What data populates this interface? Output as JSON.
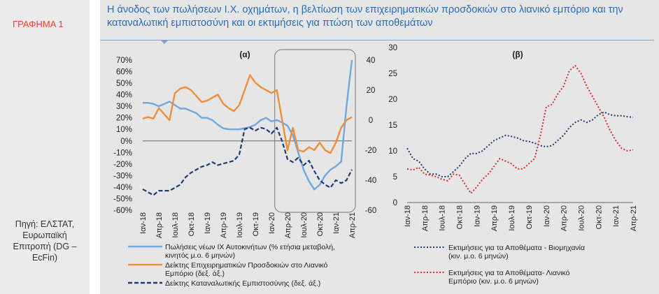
{
  "figure_label": "ΓΡΑΦΗΜΑ 1",
  "title": "Η άνοδος των πωλήσεων Ι.Χ. οχημάτων, η βελτίωση των επιχειρηματικών προσδοκιών στο λιανικό εμπόριο και την καταναλωτική εμπιστοσύνη και οι εκτιμήσεις για πτώση των αποθεμάτων",
  "source": [
    "Πηγή: ΕΛΣΤΑΤ,",
    "Ευρωπαϊκή",
    "Επιτροπή (DG –",
    "EcFin)"
  ],
  "colors": {
    "accent": "#2a6db5",
    "label_red": "#e8432f",
    "panel_bg": "#e6e6e6",
    "side_bg": "#ebebeb"
  },
  "chart_data": [
    {
      "type": "line",
      "panel_label": "(α)",
      "x": [
        "Ιαν-18",
        "Φεβ-18",
        "Μαρ-18",
        "Απρ-18",
        "Μαϊ-18",
        "Ιουν-18",
        "Ιουλ-18",
        "Αυγ-18",
        "Σεπ-18",
        "Οκτ-18",
        "Νοε-18",
        "Δεκ-18",
        "Ιαν-19",
        "Φεβ-19",
        "Μαρ-19",
        "Απρ-19",
        "Μαϊ-19",
        "Ιουν-19",
        "Ιουλ-19",
        "Αυγ-19",
        "Σεπ-19",
        "Οκτ-19",
        "Νοε-19",
        "Δεκ-19",
        "Ιαν-20",
        "Φεβ-20",
        "Μαρ-20",
        "Απρ-20",
        "Μαϊ-20",
        "Ιουν-20",
        "Ιουλ-20",
        "Αυγ-20",
        "Σεπ-20",
        "Οκτ-20",
        "Νοε-20",
        "Δεκ-20",
        "Ιαν-21",
        "Φεβ-21",
        "Μαρ-21",
        "Απρ-21"
      ],
      "x_tick_labels": [
        "Ιαν-18",
        "Απρ-18",
        "Ιουλ-18",
        "Οκτ-18",
        "Ιαν-19",
        "Απρ-19",
        "Ιουλ-19",
        "Οκτ-19",
        "Ιαν-20",
        "Απρ-20",
        "Ιουλ-20",
        "Οκτ-20",
        "Ιαν-21",
        "Απρ-21"
      ],
      "y_left_ticks": [
        "70%",
        "60%",
        "50%",
        "40%",
        "30%",
        "20%",
        "10%",
        "0%",
        "-10%",
        "-20%",
        "-30%",
        "-40%",
        "-50%",
        "-60%"
      ],
      "y_left_range": [
        -60,
        70
      ],
      "y_right_ticks": [
        "40",
        "20",
        "0",
        "-20",
        "-40",
        "-60"
      ],
      "y_right_range": [
        -60,
        40
      ],
      "highlight_box": {
        "from": "Φεβ-20",
        "to": "Απρ-21"
      },
      "series": [
        {
          "name": "Πωλήσεις νέων ΙΧ Αυτοκινήτων (% ετήσια μεταβολή, κινητός μ.ο. 6 μηνών)",
          "axis": "left",
          "color": "#6fa8dc",
          "style": "solid",
          "values": [
            33,
            33,
            32,
            30,
            32,
            34,
            31,
            28,
            28,
            26,
            24,
            20,
            20,
            18,
            14,
            11,
            10,
            10,
            10,
            11,
            12,
            14,
            18,
            20,
            17,
            18,
            16,
            13,
            5,
            -10,
            -25,
            -35,
            -42,
            -38,
            -30,
            -25,
            -22,
            -18,
            30,
            70
          ]
        },
        {
          "name": "Δείκτης Επιχειρηματικών Προσδοκιών στο Λιανικό Εμπόριο (δεξ. άξ.)",
          "axis": "right",
          "color": "#ed8e3c",
          "style": "solid",
          "values": [
            1,
            2,
            1,
            8,
            4,
            0,
            18,
            21,
            22,
            20,
            16,
            12,
            13,
            15,
            17,
            11,
            8,
            6,
            10,
            20,
            30,
            25,
            22,
            20,
            18,
            20,
            0,
            -20,
            -5,
            -20,
            -21,
            -18,
            -20,
            -15,
            -20,
            -22,
            -15,
            -5,
            0,
            2
          ]
        },
        {
          "name": "Δείκτης Καταναλωτικής Εμπιστοσύνης (δεξ. άξ.)",
          "axis": "right",
          "color": "#1f3a75",
          "style": "dashed",
          "values": [
            -46,
            -48,
            -50,
            -47,
            -47,
            -47,
            -45,
            -43,
            -38,
            -35,
            -33,
            -31,
            -30,
            -28,
            -30,
            -29,
            -28,
            -27,
            -23,
            -6,
            -5,
            -7,
            -5,
            -6,
            -9,
            -5,
            -14,
            -26,
            -28,
            -25,
            -30,
            -27,
            -34,
            -40,
            -43,
            -45,
            -40,
            -42,
            -40,
            -33
          ]
        }
      ]
    },
    {
      "type": "line",
      "panel_label": "(β)",
      "x": [
        "Ιαν-18",
        "Φεβ-18",
        "Μαρ-18",
        "Απρ-18",
        "Μαϊ-18",
        "Ιουν-18",
        "Ιουλ-18",
        "Αυγ-18",
        "Σεπ-18",
        "Οκτ-18",
        "Νοε-18",
        "Δεκ-18",
        "Ιαν-19",
        "Φεβ-19",
        "Μαρ-19",
        "Απρ-19",
        "Μαϊ-19",
        "Ιουν-19",
        "Ιουλ-19",
        "Αυγ-19",
        "Σεπ-19",
        "Οκτ-19",
        "Νοε-19",
        "Δεκ-19",
        "Ιαν-20",
        "Φεβ-20",
        "Μαρ-20",
        "Απρ-20",
        "Μαϊ-20",
        "Ιουν-20",
        "Ιουλ-20",
        "Αυγ-20",
        "Σεπ-20",
        "Οκτ-20",
        "Νοε-20",
        "Δεκ-20",
        "Ιαν-21",
        "Φεβ-21",
        "Μαρ-21",
        "Απρ-21"
      ],
      "x_tick_labels": [
        "Ιαν-18",
        "Απρ-18",
        "Ιουλ-18",
        "Οκτ-18",
        "Ιαν-19",
        "Απρ-19",
        "Ιουλ-19",
        "Οκτ-19",
        "Ιαν-20",
        "Απρ-20",
        "Ιουλ-20",
        "Οκτ-20",
        "Ιαν-21",
        "Απρ-21"
      ],
      "y_ticks": [
        "30",
        "25",
        "20",
        "15",
        "10",
        "5",
        "0"
      ],
      "y_range": [
        0,
        30
      ],
      "series": [
        {
          "name": "Εκτιμήσεις για τα Αποθέματα - Βιομηχανία (κιν. μ.ο. 6 μηνών)",
          "color": "#1f3a75",
          "style": "dotted",
          "values": [
            10.5,
            8.5,
            8,
            6.5,
            5.5,
            5.5,
            5,
            5,
            6,
            7,
            8.5,
            9.5,
            9.5,
            10,
            11,
            12,
            12.5,
            13,
            12.8,
            12.5,
            12,
            11.8,
            11.5,
            11,
            10.8,
            11,
            12,
            13,
            14.5,
            15.5,
            16,
            15.5,
            16,
            17,
            17.5,
            17,
            16.8,
            16.8,
            16.6,
            16.5
          ]
        },
        {
          "name": "Εκτιμήσεις για τα Αποθέματα- Λιανικό Εμπόριο (κιν. μ.ο. 6 μηνών)",
          "color": "#d62f2f",
          "style": "dotted",
          "values": [
            6.5,
            6.3,
            6.8,
            5.5,
            5.3,
            5,
            4.5,
            4.2,
            5.5,
            5.3,
            3.5,
            1.8,
            3,
            4.5,
            5.5,
            7,
            8.5,
            8,
            7.5,
            6.5,
            6.5,
            7.5,
            8.5,
            13,
            18.5,
            19,
            21,
            22.5,
            25.5,
            26.5,
            25,
            22.5,
            20.5,
            18.5,
            16.5,
            14,
            12,
            10.5,
            10,
            10.2
          ]
        }
      ]
    }
  ]
}
